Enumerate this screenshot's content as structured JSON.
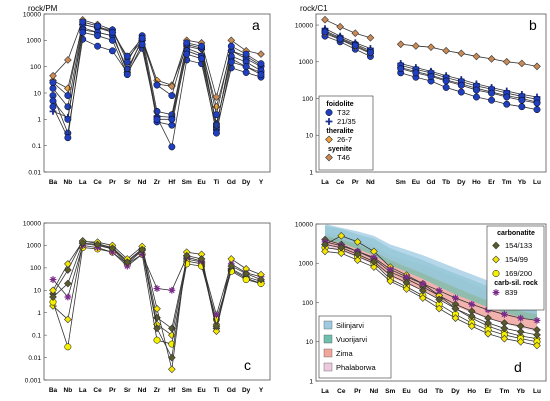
{
  "figure": {
    "panels": {
      "a": {
        "label": "a",
        "ylabel": "rock/PM"
      },
      "b": {
        "label": "b",
        "ylabel": "rock/C1"
      },
      "c": {
        "label": "c",
        "ylabel": ""
      },
      "d": {
        "label": "d",
        "ylabel": ""
      }
    },
    "legend_b": {
      "groups": [
        {
          "title": "foidolite",
          "items": [
            {
              "label": "T32",
              "marker": "circle",
              "color": "#1f3fbf"
            },
            {
              "label": "21/35",
              "marker": "plus",
              "color": "#1a2f8f"
            }
          ]
        },
        {
          "title": "theralite",
          "items": [
            {
              "label": "26-7",
              "marker": "diamond",
              "color": "#f2a23a"
            }
          ]
        },
        {
          "title": "syenite",
          "items": [
            {
              "label": "T46",
              "marker": "diamond",
              "color": "#c98a56"
            }
          ]
        }
      ]
    },
    "legend_d_markers": {
      "title": "carbonatite",
      "items": [
        {
          "label": "154/133",
          "marker": "diamond",
          "color": "#5a5a2a"
        },
        {
          "label": "154/99",
          "marker": "diamond",
          "color": "#f5e600"
        },
        {
          "label": "169/200",
          "marker": "circle",
          "color": "#f5f000"
        }
      ],
      "extra_title": "carb-sil. rock",
      "extra_items": [
        {
          "label": "839",
          "marker": "star",
          "color": "#7a2a8a"
        }
      ]
    },
    "legend_d_fields": [
      {
        "label": "Silinjarvi",
        "color": "#9ecae1"
      },
      {
        "label": "Vuorijarvi",
        "color": "#6fbfae"
      },
      {
        "label": "Zima",
        "color": "#f2a59a"
      },
      {
        "label": "Phalaborwa",
        "color": "#ecc9dc"
      }
    ]
  },
  "chart_data": [
    {
      "panel": "a",
      "type": "line",
      "yscale": "log",
      "ylim": [
        0.01,
        10000
      ],
      "yticks": [
        "10000",
        "1000",
        "100",
        "10",
        "1",
        "0.1",
        "0.01"
      ],
      "categories": [
        "Ba",
        "Nb",
        "La",
        "Ce",
        "Pr",
        "Sr",
        "Nd",
        "Zr",
        "Hf",
        "Sm",
        "Eu",
        "Ti",
        "Gd",
        "Dy",
        "Y"
      ],
      "series": [
        {
          "name": "T32",
          "marker": "circle",
          "color": "#1f3fbf",
          "values": [
            8,
            0.3,
            1100,
            600,
            400,
            60,
            500,
            1.2,
            0.09,
            180,
            130,
            0.4,
            90,
            60,
            40
          ]
        },
        {
          "name": "21/35",
          "marker": "plus",
          "color": "#1a2f8f",
          "values": [
            2,
            1.2,
            3000,
            2000,
            1500,
            80,
            1000,
            1.3,
            1.2,
            500,
            300,
            0.7,
            200,
            100,
            60
          ]
        },
        {
          "name": "26-7",
          "marker": "diamond",
          "color": "#f2a23a",
          "values": [
            30,
            15,
            4000,
            3000,
            2000,
            60,
            1200,
            30,
            20,
            600,
            450,
            3,
            400,
            250,
            110
          ]
        },
        {
          "name": "T46",
          "marker": "diamond",
          "color": "#c98a56",
          "values": [
            45,
            180,
            6000,
            4000,
            2500,
            200,
            1000,
            22,
            18,
            1000,
            800,
            7,
            1000,
            400,
            300
          ]
        },
        {
          "name": "",
          "marker": "circle",
          "color": "#1f3fbf",
          "values": [
            15,
            3,
            4000,
            3000,
            2500,
            150,
            1500,
            2,
            1.5,
            700,
            500,
            0.5,
            400,
            200,
            100
          ]
        },
        {
          "name": "",
          "marker": "circle",
          "color": "#1f3fbf",
          "values": [
            5,
            1,
            2500,
            2000,
            1500,
            80,
            1000,
            0.8,
            0.6,
            400,
            250,
            0.6,
            250,
            150,
            70
          ]
        },
        {
          "name": "",
          "marker": "circle",
          "color": "#1f3fbf",
          "values": [
            25,
            8,
            5000,
            3500,
            2000,
            250,
            1200,
            20,
            8,
            800,
            600,
            1.5,
            600,
            300,
            130
          ]
        },
        {
          "name": "",
          "marker": "circle",
          "color": "#1f3fbf",
          "values": [
            3,
            0.2,
            2000,
            1500,
            1000,
            50,
            700,
            1,
            1,
            300,
            200,
            0.3,
            150,
            100,
            50
          ]
        }
      ]
    },
    {
      "panel": "b",
      "type": "line",
      "yscale": "log",
      "ylim": [
        1,
        20000
      ],
      "yticks": [
        "10000",
        "1000",
        "100",
        "10",
        "1"
      ],
      "categories": [
        "La",
        "Ce",
        "Pr",
        "Nd",
        "",
        "Sm",
        "Eu",
        "Gd",
        "Tb",
        "Dy",
        "Ho",
        "Er",
        "Tm",
        "Yb",
        "Lu"
      ],
      "series": [
        {
          "name": "T32",
          "marker": "circle",
          "color": "#1f3fbf",
          "values": [
            5000,
            3500,
            2200,
            1400,
            null,
            500,
            380,
            300,
            200,
            150,
            110,
            90,
            70,
            60,
            50
          ]
        },
        {
          "name": "21/35",
          "marker": "plus",
          "color": "#1a2f8f",
          "values": [
            8000,
            5000,
            3300,
            2300,
            null,
            900,
            700,
            550,
            420,
            330,
            250,
            200,
            160,
            130,
            110
          ]
        },
        {
          "name": "26-7",
          "marker": "diamond",
          "color": "#f2a23a",
          "values": [
            6000,
            4000,
            2600,
            1700,
            null,
            700,
            540,
            430,
            320,
            250,
            190,
            150,
            120,
            100,
            80
          ]
        },
        {
          "name": "T46",
          "marker": "diamond",
          "color": "#c98a56",
          "values": [
            14000,
            9000,
            6000,
            4500,
            null,
            3000,
            2700,
            2500,
            2000,
            1700,
            1400,
            1200,
            1000,
            900,
            750
          ]
        },
        {
          "name": "",
          "marker": "circle",
          "color": "#1f3fbf",
          "values": [
            7000,
            4500,
            3000,
            2000,
            null,
            800,
            620,
            500,
            370,
            290,
            220,
            180,
            140,
            115,
            95
          ]
        },
        {
          "name": "",
          "marker": "circle",
          "color": "#1f3fbf",
          "values": [
            6500,
            4200,
            2800,
            1800,
            null,
            650,
            500,
            400,
            300,
            230,
            170,
            140,
            110,
            90,
            75
          ]
        }
      ]
    },
    {
      "panel": "c",
      "type": "line",
      "yscale": "log",
      "ylim": [
        0.001,
        10000
      ],
      "yticks": [
        "10000",
        "1000",
        "100",
        "10",
        "1",
        "0.1",
        "0.01",
        "0.001"
      ],
      "categories": [
        "Ba",
        "Nb",
        "La",
        "Ce",
        "Pr",
        "Sr",
        "Nd",
        "Zr",
        "Hf",
        "Sm",
        "Eu",
        "Ti",
        "Gd",
        "Dy",
        "Y"
      ],
      "series": [
        {
          "name": "154/133",
          "marker": "diamond",
          "color": "#5a5a2a",
          "values": [
            7,
            80,
            1600,
            1200,
            800,
            200,
            700,
            0.6,
            0.2,
            250,
            180,
            0.2,
            90,
            40,
            25
          ]
        },
        {
          "name": "154/99",
          "marker": "diamond",
          "color": "#f5e600",
          "values": [
            2,
            0.5,
            1200,
            1000,
            700,
            150,
            600,
            0.3,
            0.1,
            200,
            150,
            0.3,
            80,
            35,
            20
          ]
        },
        {
          "name": "169/200",
          "marker": "circle",
          "color": "#f5f000",
          "values": [
            3,
            0.03,
            800,
            700,
            500,
            150,
            400,
            0.06,
            0.04,
            150,
            120,
            0.5,
            70,
            30,
            20
          ]
        },
        {
          "name": "839",
          "marker": "star",
          "color": "#7a2a8a",
          "values": [
            30,
            5,
            1000,
            800,
            500,
            120,
            400,
            12,
            10,
            300,
            200,
            0.8,
            150,
            60,
            40
          ]
        },
        {
          "name": "",
          "marker": "diamond",
          "color": "#f5e600",
          "values": [
            10,
            150,
            1500,
            1400,
            1000,
            250,
            900,
            1.5,
            0.003,
            500,
            400,
            0.15,
            250,
            90,
            50
          ]
        },
        {
          "name": "",
          "marker": "diamond",
          "color": "#5a5a2a",
          "values": [
            5,
            20,
            1300,
            1100,
            750,
            180,
            650,
            0.2,
            0.01,
            350,
            250,
            0.25,
            120,
            55,
            30
          ]
        }
      ]
    },
    {
      "panel": "d",
      "type": "line",
      "yscale": "log",
      "ylim": [
        1,
        10000
      ],
      "yticks": [
        "10000",
        "1000",
        "100",
        "10",
        "1"
      ],
      "categories": [
        "La",
        "Ce",
        "Pr",
        "Nd",
        "Sm",
        "Eu",
        "Gd",
        "Tb",
        "Dy",
        "Ho",
        "Er",
        "Tm",
        "Yb",
        "Lu"
      ],
      "series": [
        {
          "name": "154/133",
          "marker": "diamond",
          "color": "#5a5a2a",
          "values": [
            4000,
            3000,
            2000,
            1300,
            600,
            400,
            250,
            150,
            90,
            60,
            40,
            30,
            25,
            20
          ]
        },
        {
          "name": "154/99",
          "marker": "diamond",
          "color": "#f5e600",
          "values": [
            3000,
            5000,
            3500,
            2000,
            800,
            500,
            300,
            150,
            70,
            40,
            25,
            18,
            14,
            12
          ]
        },
        {
          "name": "169/200",
          "marker": "circle",
          "color": "#f5f000",
          "values": [
            2500,
            2200,
            1500,
            1000,
            400,
            250,
            150,
            90,
            50,
            30,
            20,
            15,
            12,
            10
          ]
        },
        {
          "name": "839",
          "marker": "star",
          "color": "#7a2a8a",
          "values": [
            3500,
            2800,
            2000,
            1400,
            700,
            450,
            300,
            200,
            130,
            90,
            65,
            50,
            40,
            35
          ]
        },
        {
          "name": "",
          "marker": "diamond",
          "color": "#f5e600",
          "values": [
            2000,
            1800,
            1200,
            800,
            350,
            220,
            130,
            70,
            40,
            25,
            16,
            12,
            10,
            8
          ]
        },
        {
          "name": "",
          "marker": "diamond",
          "color": "#5a5a2a",
          "values": [
            3000,
            2500,
            1700,
            1100,
            500,
            320,
            200,
            120,
            70,
            45,
            30,
            22,
            18,
            15
          ]
        }
      ],
      "fields": [
        {
          "name": "Phalaborwa",
          "color": "#ecc9dc",
          "lower": [
            2500,
            2000,
            1400,
            900,
            500,
            320,
            220,
            140,
            90,
            60,
            40,
            30,
            22,
            18
          ],
          "upper": [
            6000,
            5000,
            3800,
            2600,
            1400,
            900,
            600,
            400,
            260,
            170,
            120,
            90,
            70,
            60
          ]
        },
        {
          "name": "Zima",
          "color": "#f2a59a",
          "lower": [
            3000,
            2300,
            1500,
            1000,
            450,
            300,
            200,
            120,
            80,
            55,
            40,
            30,
            24,
            20
          ],
          "upper": [
            6000,
            5000,
            3800,
            2800,
            1600,
            1200,
            900,
            650,
            450,
            300,
            200,
            150,
            110,
            90
          ]
        },
        {
          "name": "Vuorijarvi",
          "color": "#6fbfae",
          "lower": [
            4000,
            3200,
            2300,
            1600,
            900,
            600,
            400,
            250,
            160,
            110,
            75,
            55,
            42,
            35
          ],
          "upper": [
            9000,
            7500,
            5500,
            4200,
            2400,
            1700,
            1200,
            800,
            550,
            380,
            260,
            190,
            140,
            110
          ]
        },
        {
          "name": "Silinjarvi",
          "color": "#9ecae1",
          "lower": [
            5000,
            4000,
            3000,
            2000,
            1200,
            800,
            550,
            360,
            240,
            160,
            110,
            80,
            60,
            50
          ],
          "upper": [
            10000,
            8000,
            6500,
            5000,
            3000,
            2200,
            1600,
            1100,
            750,
            520,
            360,
            270,
            200,
            160
          ]
        }
      ]
    }
  ]
}
